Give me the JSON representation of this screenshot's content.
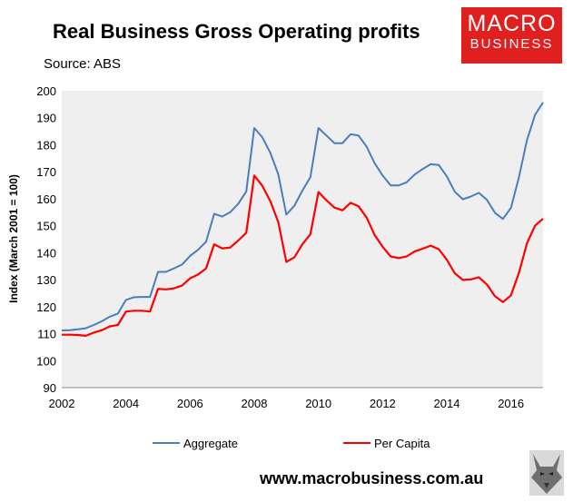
{
  "title": "Real Business Gross Operating profits",
  "source": "Source: ABS",
  "logo": {
    "line1": "MACRO",
    "line2": "BUSINESS",
    "color": "#e0201f"
  },
  "footer_url": "www.macrobusiness.com.au",
  "chart_data": {
    "type": "line",
    "xlabel": "",
    "ylabel": "Index (March 2001 = 100)",
    "xlim": [
      2002,
      2017
    ],
    "ylim": [
      90,
      200
    ],
    "x_ticks": [
      "2002",
      "2004",
      "2006",
      "2008",
      "2010",
      "2012",
      "2014",
      "2016"
    ],
    "y_ticks": [
      "90",
      "100",
      "110",
      "120",
      "130",
      "140",
      "150",
      "160",
      "170",
      "180",
      "190",
      "200"
    ],
    "grid": false,
    "plot_background": "#efefef",
    "legend": "bottom",
    "series": [
      {
        "name": "Aggregate",
        "color": "#4a7ebb",
        "x": [
          2002.0,
          2002.25,
          2002.5,
          2002.75,
          2003.0,
          2003.25,
          2003.5,
          2003.75,
          2004.0,
          2004.25,
          2004.5,
          2004.75,
          2005.0,
          2005.25,
          2005.5,
          2005.75,
          2006.0,
          2006.25,
          2006.5,
          2006.75,
          2007.0,
          2007.25,
          2007.5,
          2007.75,
          2008.0,
          2008.25,
          2008.5,
          2008.75,
          2009.0,
          2009.25,
          2009.5,
          2009.75,
          2010.0,
          2010.25,
          2010.5,
          2010.75,
          2011.0,
          2011.25,
          2011.5,
          2011.75,
          2012.0,
          2012.25,
          2012.5,
          2012.75,
          2013.0,
          2013.25,
          2013.5,
          2013.75,
          2014.0,
          2014.25,
          2014.5,
          2014.75,
          2015.0,
          2015.25,
          2015.5,
          2015.75,
          2016.0,
          2016.25,
          2016.5,
          2016.75,
          2017.0
        ],
        "values": [
          111.2,
          111.3,
          111.6,
          112.0,
          113.2,
          114.6,
          116.3,
          117.4,
          122.5,
          123.5,
          123.6,
          123.6,
          132.9,
          132.9,
          134.2,
          135.6,
          138.8,
          141.1,
          144.1,
          154.4,
          153.4,
          155.0,
          158.1,
          162.7,
          186.2,
          182.8,
          177.0,
          169.0,
          154.1,
          157.4,
          163.0,
          168.0,
          186.2,
          183.4,
          180.6,
          180.6,
          183.9,
          183.4,
          179.3,
          173.2,
          168.6,
          164.9,
          164.9,
          166.1,
          169.0,
          171.0,
          172.8,
          172.5,
          168.3,
          162.6,
          159.8,
          160.8,
          162.2,
          159.6,
          154.8,
          152.5,
          156.6,
          168.0,
          181.7,
          191.1,
          195.7
        ]
      },
      {
        "name": "Per Capita",
        "color": "#ff0000",
        "x": [
          2002.0,
          2002.25,
          2002.5,
          2002.75,
          2003.0,
          2003.25,
          2003.5,
          2003.75,
          2004.0,
          2004.25,
          2004.5,
          2004.75,
          2005.0,
          2005.25,
          2005.5,
          2005.75,
          2006.0,
          2006.25,
          2006.5,
          2006.75,
          2007.0,
          2007.25,
          2007.5,
          2007.75,
          2008.0,
          2008.25,
          2008.5,
          2008.75,
          2009.0,
          2009.25,
          2009.5,
          2009.75,
          2010.0,
          2010.25,
          2010.5,
          2010.75,
          2011.0,
          2011.25,
          2011.5,
          2011.75,
          2012.0,
          2012.25,
          2012.5,
          2012.75,
          2013.0,
          2013.25,
          2013.5,
          2013.75,
          2014.0,
          2014.25,
          2014.5,
          2014.75,
          2015.0,
          2015.25,
          2015.5,
          2015.75,
          2016.0,
          2016.25,
          2016.5,
          2016.75,
          2017.0
        ],
        "values": [
          109.6,
          109.6,
          109.5,
          109.2,
          110.4,
          111.3,
          112.7,
          113.2,
          118.2,
          118.5,
          118.5,
          118.2,
          126.6,
          126.4,
          126.8,
          127.8,
          130.5,
          131.9,
          134.2,
          143.1,
          141.6,
          141.9,
          144.5,
          147.4,
          168.6,
          164.8,
          159.1,
          151.3,
          136.6,
          138.3,
          143.1,
          146.8,
          162.5,
          159.4,
          156.7,
          155.7,
          158.5,
          157.2,
          153.0,
          146.6,
          142.2,
          138.6,
          138.0,
          138.6,
          140.5,
          141.5,
          142.6,
          141.3,
          137.4,
          132.4,
          129.9,
          130.1,
          130.9,
          128.2,
          123.9,
          121.7,
          124.2,
          132.6,
          143.5,
          150.0,
          152.6
        ]
      }
    ]
  }
}
